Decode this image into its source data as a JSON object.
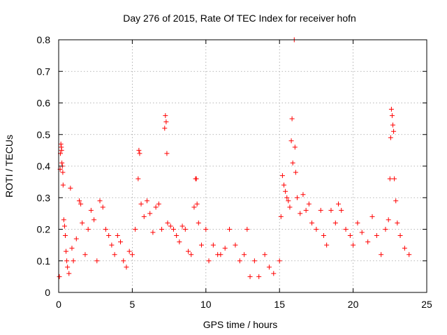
{
  "chart_data": {
    "type": "scatter",
    "title": "Day 276 of 2015, Rate Of TEC Index for receiver hofn",
    "xlabel": "GPS time / hours",
    "ylabel": "ROTI / TECUs",
    "xlim": [
      0,
      25
    ],
    "ylim": [
      0,
      0.8
    ],
    "x_ticks": [
      0,
      5,
      10,
      15,
      20,
      25
    ],
    "y_ticks": [
      0,
      0.1,
      0.2,
      0.3,
      0.4,
      0.5,
      0.6,
      0.7,
      0.8
    ],
    "x_tick_labels": [
      "0",
      "5",
      "10",
      "15",
      "20",
      "25"
    ],
    "y_tick_labels": [
      "0",
      "0.1",
      "0.2",
      "0.3",
      "0.4",
      "0.5",
      "0.6",
      "0.7",
      "0.8"
    ],
    "grid": true,
    "marker": "+",
    "marker_color": "#ff0000",
    "series": [
      {
        "name": "ROTI",
        "points": [
          [
            0.05,
            0.05
          ],
          [
            0.1,
            0.39
          ],
          [
            0.12,
            0.44
          ],
          [
            0.15,
            0.47
          ],
          [
            0.18,
            0.46
          ],
          [
            0.2,
            0.45
          ],
          [
            0.22,
            0.41
          ],
          [
            0.25,
            0.4
          ],
          [
            0.28,
            0.38
          ],
          [
            0.3,
            0.34
          ],
          [
            0.35,
            0.23
          ],
          [
            0.4,
            0.21
          ],
          [
            0.45,
            0.18
          ],
          [
            0.5,
            0.13
          ],
          [
            0.55,
            0.1
          ],
          [
            0.6,
            0.08
          ],
          [
            0.7,
            0.06
          ],
          [
            0.8,
            0.33
          ],
          [
            0.9,
            0.14
          ],
          [
            1.0,
            0.1
          ],
          [
            1.2,
            0.17
          ],
          [
            1.4,
            0.29
          ],
          [
            1.5,
            0.28
          ],
          [
            1.6,
            0.22
          ],
          [
            1.8,
            0.12
          ],
          [
            2.0,
            0.2
          ],
          [
            2.2,
            0.26
          ],
          [
            2.4,
            0.23
          ],
          [
            2.6,
            0.1
          ],
          [
            2.8,
            0.29
          ],
          [
            3.0,
            0.27
          ],
          [
            3.2,
            0.2
          ],
          [
            3.4,
            0.18
          ],
          [
            3.6,
            0.15
          ],
          [
            3.8,
            0.12
          ],
          [
            4.0,
            0.18
          ],
          [
            4.2,
            0.16
          ],
          [
            4.4,
            0.1
          ],
          [
            4.6,
            0.08
          ],
          [
            4.8,
            0.13
          ],
          [
            5.0,
            0.12
          ],
          [
            5.2,
            0.2
          ],
          [
            5.4,
            0.36
          ],
          [
            5.45,
            0.45
          ],
          [
            5.5,
            0.44
          ],
          [
            5.6,
            0.28
          ],
          [
            5.8,
            0.24
          ],
          [
            6.0,
            0.29
          ],
          [
            6.2,
            0.25
          ],
          [
            6.4,
            0.19
          ],
          [
            6.6,
            0.27
          ],
          [
            6.8,
            0.28
          ],
          [
            7.0,
            0.2
          ],
          [
            7.2,
            0.52
          ],
          [
            7.25,
            0.56
          ],
          [
            7.3,
            0.54
          ],
          [
            7.35,
            0.44
          ],
          [
            7.4,
            0.22
          ],
          [
            7.6,
            0.21
          ],
          [
            7.8,
            0.2
          ],
          [
            8.0,
            0.18
          ],
          [
            8.2,
            0.16
          ],
          [
            8.4,
            0.21
          ],
          [
            8.6,
            0.2
          ],
          [
            8.8,
            0.13
          ],
          [
            9.0,
            0.12
          ],
          [
            9.2,
            0.27
          ],
          [
            9.3,
            0.36
          ],
          [
            9.35,
            0.36
          ],
          [
            9.4,
            0.28
          ],
          [
            9.5,
            0.22
          ],
          [
            9.7,
            0.15
          ],
          [
            10.0,
            0.2
          ],
          [
            10.2,
            0.1
          ],
          [
            10.5,
            0.15
          ],
          [
            10.8,
            0.12
          ],
          [
            11.0,
            0.12
          ],
          [
            11.3,
            0.14
          ],
          [
            11.6,
            0.2
          ],
          [
            12.0,
            0.15
          ],
          [
            12.3,
            0.1
          ],
          [
            12.6,
            0.12
          ],
          [
            12.8,
            0.2
          ],
          [
            13.0,
            0.05
          ],
          [
            13.3,
            0.1
          ],
          [
            13.6,
            0.05
          ],
          [
            14.0,
            0.12
          ],
          [
            14.3,
            0.08
          ],
          [
            14.6,
            0.06
          ],
          [
            15.0,
            0.1
          ],
          [
            15.1,
            0.24
          ],
          [
            15.2,
            0.37
          ],
          [
            15.3,
            0.34
          ],
          [
            15.4,
            0.32
          ],
          [
            15.5,
            0.3
          ],
          [
            15.6,
            0.29
          ],
          [
            15.7,
            0.27
          ],
          [
            15.8,
            0.48
          ],
          [
            15.85,
            0.55
          ],
          [
            15.9,
            0.41
          ],
          [
            16.0,
            0.8
          ],
          [
            16.05,
            0.46
          ],
          [
            16.1,
            0.38
          ],
          [
            16.2,
            0.3
          ],
          [
            16.4,
            0.25
          ],
          [
            16.6,
            0.31
          ],
          [
            16.8,
            0.26
          ],
          [
            17.0,
            0.28
          ],
          [
            17.2,
            0.22
          ],
          [
            17.5,
            0.2
          ],
          [
            17.8,
            0.26
          ],
          [
            18.0,
            0.18
          ],
          [
            18.2,
            0.15
          ],
          [
            18.5,
            0.26
          ],
          [
            18.8,
            0.22
          ],
          [
            19.0,
            0.28
          ],
          [
            19.2,
            0.26
          ],
          [
            19.5,
            0.2
          ],
          [
            19.8,
            0.18
          ],
          [
            20.0,
            0.15
          ],
          [
            20.3,
            0.22
          ],
          [
            20.6,
            0.19
          ],
          [
            21.0,
            0.16
          ],
          [
            21.3,
            0.24
          ],
          [
            21.6,
            0.18
          ],
          [
            21.9,
            0.12
          ],
          [
            22.2,
            0.2
          ],
          [
            22.4,
            0.23
          ],
          [
            22.5,
            0.36
          ],
          [
            22.55,
            0.49
          ],
          [
            22.6,
            0.58
          ],
          [
            22.65,
            0.56
          ],
          [
            22.7,
            0.53
          ],
          [
            22.75,
            0.51
          ],
          [
            22.8,
            0.36
          ],
          [
            22.9,
            0.29
          ],
          [
            23.0,
            0.22
          ],
          [
            23.2,
            0.18
          ],
          [
            23.5,
            0.14
          ],
          [
            23.8,
            0.12
          ]
        ]
      }
    ]
  }
}
